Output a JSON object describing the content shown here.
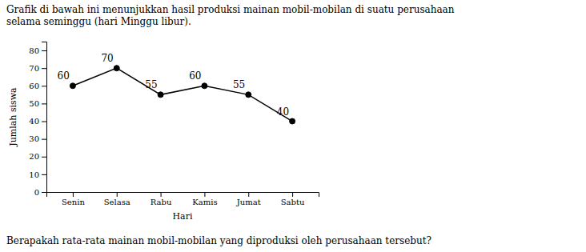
{
  "chart_data": {
    "type": "line",
    "title": "Grafik di bawah ini menunjukkan hasil produksi mainan mobil-mobilan di suatu perusahaan\nselama seminggu (hari Minggu libur).",
    "footer": "Berapakah rata-rata mainan mobil-mobilan yang diproduksi oleh perusahaan tersebut?",
    "x_label": "Hari",
    "y_label": "Jumlah siswa",
    "categories": [
      "Senin",
      "Selasa",
      "Rabu",
      "Kamis",
      "Jumat",
      "Sabtu"
    ],
    "values": [
      60,
      70,
      55,
      60,
      55,
      40
    ],
    "color": "#000000",
    "marker": "circle",
    "ylim": [
      0,
      85
    ],
    "yticks": [
      0,
      10,
      20,
      30,
      40,
      50,
      60,
      70,
      80
    ],
    "grid": false,
    "data_labels": true
  }
}
